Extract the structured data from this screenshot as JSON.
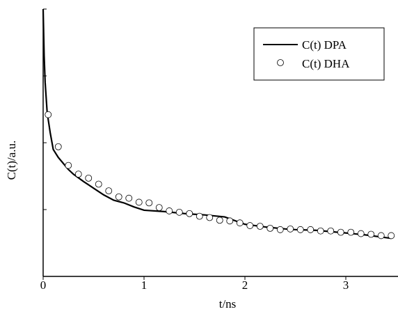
{
  "chart_data": {
    "type": "line",
    "xlabel": "t/ns",
    "ylabel": "C(t)/a.u.",
    "xlim": [
      0,
      3.45
    ],
    "xticks": [
      0,
      1,
      2,
      3
    ],
    "ylim": [
      0,
      4
    ],
    "yticks": [
      0,
      1,
      2,
      3,
      4
    ],
    "legend": "upper right",
    "series": [
      {
        "name": "C(t) DPA",
        "color": "#000000",
        "style": "line",
        "x": [
          0,
          0.01,
          0.02,
          0.04,
          0.07,
          0.1,
          0.15,
          0.2,
          0.25,
          0.3,
          0.4,
          0.5,
          0.6,
          0.7,
          0.8,
          0.9,
          1.0,
          1.2,
          1.4,
          1.5,
          1.6,
          1.8,
          2.0,
          2.2,
          2.4,
          2.5,
          2.7,
          3.0,
          3.2,
          3.45
        ],
        "values": [
          4,
          3.3,
          2.9,
          2.45,
          2.15,
          1.9,
          1.78,
          1.69,
          1.6,
          1.53,
          1.42,
          1.32,
          1.22,
          1.14,
          1.1,
          1.04,
          0.99,
          0.97,
          0.94,
          0.93,
          0.92,
          0.89,
          0.78,
          0.74,
          0.71,
          0.7,
          0.69,
          0.65,
          0.62,
          0.57
        ]
      },
      {
        "name": "C(t) DHA",
        "color": "#000000",
        "style": "marker",
        "x": [
          0.05,
          0.15,
          0.25,
          0.35,
          0.45,
          0.55,
          0.65,
          0.75,
          0.85,
          0.95,
          1.05,
          1.15,
          1.25,
          1.35,
          1.45,
          1.55,
          1.65,
          1.75,
          1.85,
          1.95,
          2.05,
          2.15,
          2.25,
          2.35,
          2.45,
          2.55,
          2.65,
          2.75,
          2.85,
          2.95,
          3.05,
          3.15,
          3.25,
          3.35,
          3.45
        ],
        "values": [
          2.42,
          1.94,
          1.66,
          1.53,
          1.47,
          1.38,
          1.28,
          1.19,
          1.17,
          1.11,
          1.1,
          1.03,
          0.98,
          0.96,
          0.94,
          0.9,
          0.88,
          0.84,
          0.83,
          0.8,
          0.76,
          0.75,
          0.72,
          0.7,
          0.71,
          0.7,
          0.7,
          0.68,
          0.68,
          0.66,
          0.66,
          0.64,
          0.63,
          0.61,
          0.61
        ]
      }
    ]
  }
}
